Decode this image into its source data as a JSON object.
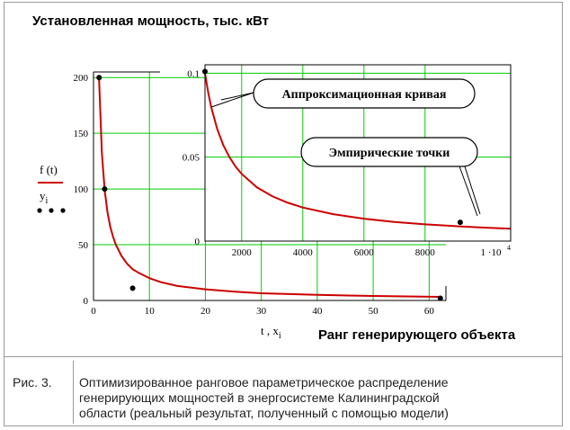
{
  "figure": {
    "title": "Установленная мощность, тыс. кВт",
    "xaxis_label": "Ранг генерирующего объекта",
    "caption_number": "Рис. 3.",
    "caption_lines": [
      "Оптимизированное ранговое параметрическое распределение",
      "генерирующих мощностей в энергосистеме Калининградской",
      "области (реальный результат, полученный с помощью модели)"
    ]
  },
  "chart_data": [
    {
      "type": "line",
      "xlabel": "t , x",
      "xlabel_subscript": "i",
      "xlim": [
        0,
        63
      ],
      "ylim": [
        0,
        205
      ],
      "xticks": [
        0,
        10,
        20,
        30,
        40,
        50,
        60
      ],
      "yticks": [
        0,
        50,
        100,
        150,
        200
      ],
      "legend": [
        {
          "label": "f (t)",
          "style": "line",
          "color": "#cc0000"
        },
        {
          "label": "y",
          "subscript": "i",
          "style": "points",
          "color": "#000000"
        }
      ],
      "curve_color": "#cc0000",
      "grid_color": "#00cc00",
      "curve": {
        "x": [
          1,
          1.5,
          2,
          2.5,
          3,
          3.5,
          4,
          5,
          6,
          7,
          8,
          10,
          12,
          15,
          20,
          25,
          30,
          40,
          50,
          62
        ],
        "y": [
          198,
          132,
          99,
          79,
          66,
          57,
          50,
          40,
          33,
          28,
          25,
          20,
          16.5,
          13,
          10,
          8,
          6.5,
          5,
          4,
          3.2
        ]
      },
      "points": {
        "x": [
          1,
          2,
          7,
          62
        ],
        "y": [
          200,
          100,
          11,
          2
        ]
      }
    },
    {
      "type": "line",
      "xlim": [
        800,
        10800
      ],
      "ylim": [
        0,
        0.105
      ],
      "xticks": [
        2000,
        4000,
        6000,
        8000
      ],
      "x_last_tick_label": "1 ·10",
      "x_last_tick_exponent": "4",
      "yticks": [
        0,
        0.05,
        0.1
      ],
      "curve_color": "#cc0000",
      "grid_color": "#00cc00",
      "curve": {
        "x": [
          800,
          900,
          1000,
          1200,
          1400,
          1600,
          1800,
          2000,
          2500,
          3000,
          3500,
          4000,
          5000,
          6000,
          7000,
          8000,
          9000,
          10000,
          10800
        ],
        "y": [
          0.1,
          0.089,
          0.08,
          0.0667,
          0.0571,
          0.05,
          0.0444,
          0.04,
          0.032,
          0.0267,
          0.0229,
          0.02,
          0.016,
          0.0133,
          0.0114,
          0.01,
          0.0089,
          0.008,
          0.0074
        ]
      },
      "points": {
        "x": [
          800,
          9150
        ],
        "y": [
          0.101,
          0.0112
        ]
      },
      "annotations": [
        "Аппроксимационная кривая",
        "Эмпирические точки"
      ]
    }
  ]
}
